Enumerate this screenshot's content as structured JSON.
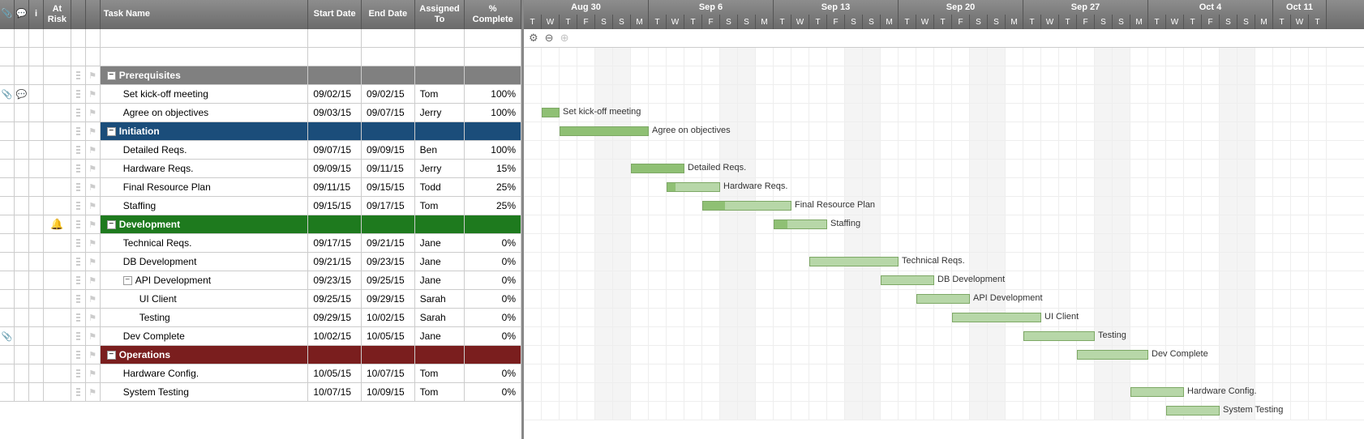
{
  "dayWidth": 22,
  "startDayIndex": 0,
  "columns": {
    "attach": "",
    "comment": "",
    "info": "i",
    "atRisk": "At Risk",
    "taskName": "Task Name",
    "startDate": "Start Date",
    "endDate": "End Date",
    "assignedTo": "Assigned To",
    "pctComplete": "% Complete"
  },
  "groupColors": {
    "prerequisites": "#808080",
    "initiation": "#1b4d7a",
    "development": "#1e7a1e",
    "operations": "#7a1e1e"
  },
  "barColors": {
    "fill": "#b7d7a8",
    "border": "#7da865",
    "progress": "#8fc074"
  },
  "weeks": [
    {
      "label": "Aug 30",
      "days": 7
    },
    {
      "label": "Sep 6",
      "days": 7
    },
    {
      "label": "Sep 13",
      "days": 7
    },
    {
      "label": "Sep 20",
      "days": 7
    },
    {
      "label": "Sep 27",
      "days": 7
    },
    {
      "label": "Oct 4",
      "days": 7
    },
    {
      "label": "Oct 11",
      "days": 3
    }
  ],
  "dayLetters": [
    "T",
    "W",
    "T",
    "F",
    "S",
    "S",
    "M",
    "T",
    "W",
    "T",
    "F",
    "S",
    "S",
    "M",
    "T",
    "W",
    "T",
    "F",
    "S",
    "S",
    "M",
    "T",
    "W",
    "T",
    "F",
    "S",
    "S",
    "M",
    "T",
    "W",
    "T",
    "F",
    "S",
    "S",
    "M",
    "T",
    "W",
    "T",
    "F",
    "S",
    "S",
    "M",
    "T",
    "W",
    "T"
  ],
  "weekendIdx": [
    4,
    5,
    11,
    12,
    18,
    19,
    25,
    26,
    32,
    33,
    39,
    40
  ],
  "rows": [
    {
      "type": "blank"
    },
    {
      "type": "blank"
    },
    {
      "type": "group",
      "flag": true,
      "color": "prerequisites",
      "task": "Prerequisites",
      "indent": 0
    },
    {
      "type": "task",
      "attach": true,
      "comment": true,
      "flag": true,
      "task": "Set kick-off meeting",
      "indent": 1,
      "start": "09/02/15",
      "end": "09/02/15",
      "assigned": "Tom",
      "pct": "100%",
      "barStart": 1,
      "barLen": 1,
      "barFill": 100
    },
    {
      "type": "task",
      "flag": true,
      "task": "Agree on objectives",
      "indent": 1,
      "start": "09/03/15",
      "end": "09/07/15",
      "assigned": "Jerry",
      "pct": "100%",
      "barStart": 2,
      "barLen": 5,
      "barFill": 100
    },
    {
      "type": "group",
      "flag": true,
      "color": "initiation",
      "task": "Initiation",
      "indent": 0
    },
    {
      "type": "task",
      "flag": true,
      "task": "Detailed Reqs.",
      "indent": 1,
      "start": "09/07/15",
      "end": "09/09/15",
      "assigned": "Ben",
      "pct": "100%",
      "barStart": 6,
      "barLen": 3,
      "barFill": 100
    },
    {
      "type": "task",
      "flag": true,
      "task": "Hardware Reqs.",
      "indent": 1,
      "start": "09/09/15",
      "end": "09/11/15",
      "assigned": "Jerry",
      "pct": "15%",
      "barStart": 8,
      "barLen": 3,
      "barFill": 15
    },
    {
      "type": "task",
      "flag": true,
      "task": "Final Resource Plan",
      "indent": 1,
      "start": "09/11/15",
      "end": "09/15/15",
      "assigned": "Todd",
      "pct": "25%",
      "barStart": 10,
      "barLen": 5,
      "barFill": 25
    },
    {
      "type": "task",
      "flag": true,
      "task": "Staffing",
      "indent": 1,
      "start": "09/15/15",
      "end": "09/17/15",
      "assigned": "Tom",
      "pct": "25%",
      "barStart": 14,
      "barLen": 3,
      "barFill": 25
    },
    {
      "type": "group",
      "bell": true,
      "flag": true,
      "color": "development",
      "task": "Development",
      "indent": 0
    },
    {
      "type": "task",
      "flag": true,
      "task": "Technical Reqs.",
      "indent": 1,
      "start": "09/17/15",
      "end": "09/21/15",
      "assigned": "Jane",
      "pct": "0%",
      "barStart": 16,
      "barLen": 5,
      "barFill": 0
    },
    {
      "type": "task",
      "flag": true,
      "task": "DB Development",
      "indent": 1,
      "start": "09/21/15",
      "end": "09/23/15",
      "assigned": "Jane",
      "pct": "0%",
      "barStart": 20,
      "barLen": 3,
      "barFill": 0
    },
    {
      "type": "task",
      "flag": true,
      "subtoggle": true,
      "task": "API Development",
      "indent": 1,
      "start": "09/23/15",
      "end": "09/25/15",
      "assigned": "Jane",
      "pct": "0%",
      "barStart": 22,
      "barLen": 3,
      "barFill": 0
    },
    {
      "type": "task",
      "flag": true,
      "task": "UI Client",
      "indent": 2,
      "start": "09/25/15",
      "end": "09/29/15",
      "assigned": "Sarah",
      "pct": "0%",
      "barStart": 24,
      "barLen": 5,
      "barFill": 0
    },
    {
      "type": "task",
      "flag": true,
      "task": "Testing",
      "indent": 2,
      "start": "09/29/15",
      "end": "10/02/15",
      "assigned": "Sarah",
      "pct": "0%",
      "barStart": 28,
      "barLen": 4,
      "barFill": 0
    },
    {
      "type": "task",
      "attach": true,
      "flag": true,
      "task": "Dev Complete",
      "indent": 1,
      "start": "10/02/15",
      "end": "10/05/15",
      "assigned": "Jane",
      "pct": "0%",
      "barStart": 31,
      "barLen": 4,
      "barFill": 0
    },
    {
      "type": "group",
      "flag": true,
      "color": "operations",
      "task": "Operations",
      "indent": 0
    },
    {
      "type": "task",
      "flag": true,
      "task": "Hardware Config.",
      "indent": 1,
      "start": "10/05/15",
      "end": "10/07/15",
      "assigned": "Tom",
      "pct": "0%",
      "barStart": 34,
      "barLen": 3,
      "barFill": 0
    },
    {
      "type": "task",
      "flag": true,
      "task": "System Testing",
      "indent": 1,
      "start": "10/07/15",
      "end": "10/09/15",
      "assigned": "Tom",
      "pct": "0%",
      "barStart": 36,
      "barLen": 3,
      "barFill": 0
    }
  ],
  "tools": {
    "gear": "⚙",
    "zoomOut": "⊖",
    "zoomIn": "⊕"
  }
}
